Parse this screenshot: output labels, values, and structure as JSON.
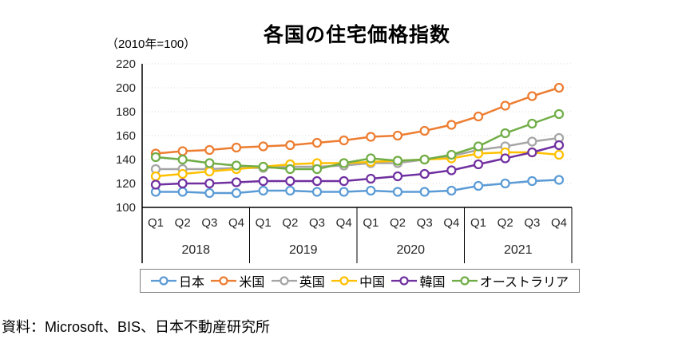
{
  "header": {
    "title": "各国の住宅価格指数",
    "unit_label": "（2010年=100）"
  },
  "source_note": "資料：Microsoft、BIS、日本不動産研究所",
  "chart_data": {
    "type": "line",
    "title": "各国の住宅価格指数",
    "subtitle": "（2010年=100）",
    "grid": "horizontal-dotted",
    "legend_position": "bottom",
    "ylim": [
      100,
      220
    ],
    "y_ticks": [
      100,
      120,
      140,
      160,
      180,
      200,
      220
    ],
    "quarter_labels": [
      "Q1",
      "Q2",
      "Q3",
      "Q4"
    ],
    "year_labels": [
      "2018",
      "2019",
      "2020",
      "2021"
    ],
    "categories": [
      "2018Q1",
      "2018Q2",
      "2018Q3",
      "2018Q4",
      "2019Q1",
      "2019Q2",
      "2019Q3",
      "2019Q4",
      "2020Q1",
      "2020Q2",
      "2020Q3",
      "2020Q4",
      "2021Q1",
      "2021Q2",
      "2021Q3",
      "2021Q4"
    ],
    "marker": "open-circle",
    "series": [
      {
        "name": "日本",
        "color": "#5B9BD5",
        "values": [
          113,
          113,
          112,
          112,
          114,
          114,
          113,
          113,
          114,
          113,
          113,
          114,
          118,
          120,
          122,
          123
        ]
      },
      {
        "name": "米国",
        "color": "#ED7D31",
        "values": [
          145,
          147,
          148,
          150,
          151,
          152,
          154,
          156,
          159,
          160,
          164,
          169,
          176,
          185,
          193,
          200
        ]
      },
      {
        "name": "英国",
        "color": "#A5A5A5",
        "values": [
          132,
          132,
          132,
          133,
          133,
          134,
          134,
          135,
          137,
          137,
          140,
          143,
          148,
          151,
          155,
          158
        ]
      },
      {
        "name": "中国",
        "color": "#FFC000",
        "values": [
          126,
          128,
          130,
          132,
          134,
          136,
          137,
          137,
          138,
          139,
          140,
          141,
          145,
          146,
          146,
          144
        ]
      },
      {
        "name": "韓国",
        "color": "#7030A0",
        "values": [
          119,
          120,
          120,
          121,
          122,
          122,
          122,
          122,
          124,
          126,
          128,
          131,
          136,
          141,
          146,
          152
        ]
      },
      {
        "name": "オーストラリア",
        "color": "#70AD47",
        "values": [
          142,
          140,
          137,
          135,
          134,
          132,
          132,
          137,
          141,
          139,
          140,
          144,
          151,
          162,
          170,
          178
        ]
      }
    ],
    "axis_color": "#000000",
    "gridline_color": "#d9d9d9",
    "tick_label_color": "#262626"
  }
}
